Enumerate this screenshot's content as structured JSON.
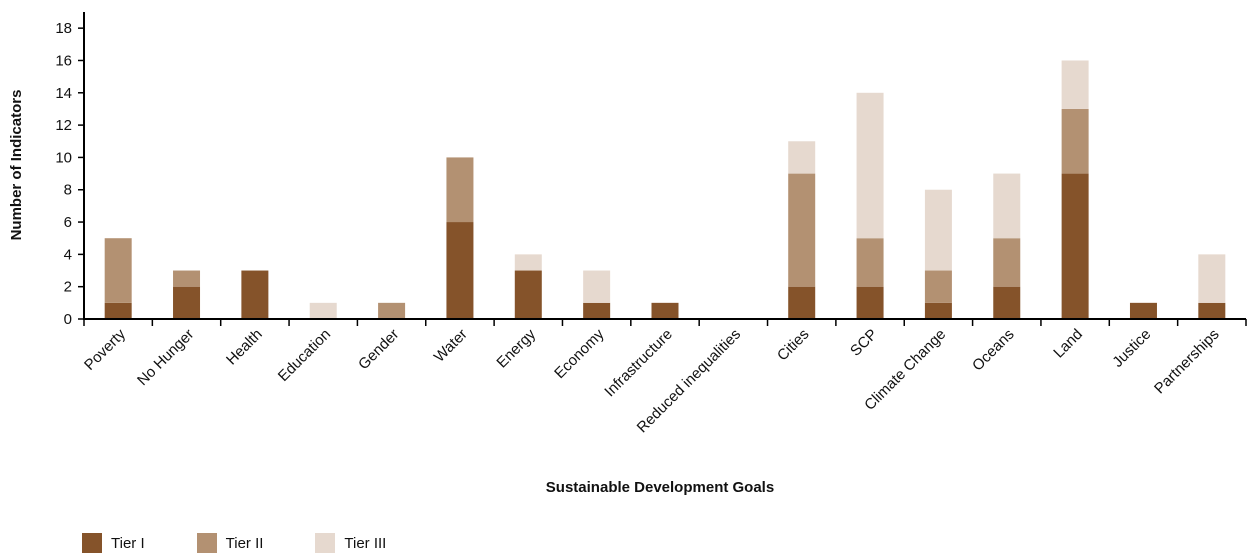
{
  "chart_data": {
    "type": "bar",
    "stacked": true,
    "xlabel": "Sustainable Development Goals",
    "ylabel": "Number of Indicators",
    "ylim": [
      0,
      19
    ],
    "yticks": [
      0,
      2,
      4,
      6,
      8,
      10,
      12,
      14,
      16,
      18
    ],
    "categories": [
      "Poverty",
      "No Hunger",
      "Health",
      "Education",
      "Gender",
      "Water",
      "Energy",
      "Economy",
      "Infrastructure",
      "Reduced inequalities",
      "Cities",
      "SCP",
      "Climate Change",
      "Oceans",
      "Land",
      "Justice",
      "Partnerships"
    ],
    "series": [
      {
        "name": "Tier I",
        "color": "#85532a",
        "values": [
          1,
          2,
          3,
          0,
          0,
          6,
          3,
          1,
          1,
          0,
          2,
          2,
          1,
          2,
          9,
          1,
          1
        ]
      },
      {
        "name": "Tier II",
        "color": "#b39172",
        "values": [
          4,
          1,
          0,
          0,
          1,
          4,
          0,
          0,
          0,
          0,
          7,
          3,
          2,
          3,
          4,
          0,
          0
        ]
      },
      {
        "name": "Tier III",
        "color": "#e6d9cf",
        "values": [
          0,
          0,
          0,
          1,
          0,
          0,
          1,
          2,
          0,
          0,
          2,
          9,
          5,
          4,
          3,
          0,
          3
        ]
      }
    ],
    "legend_position": "bottom-left",
    "grid": false
  }
}
